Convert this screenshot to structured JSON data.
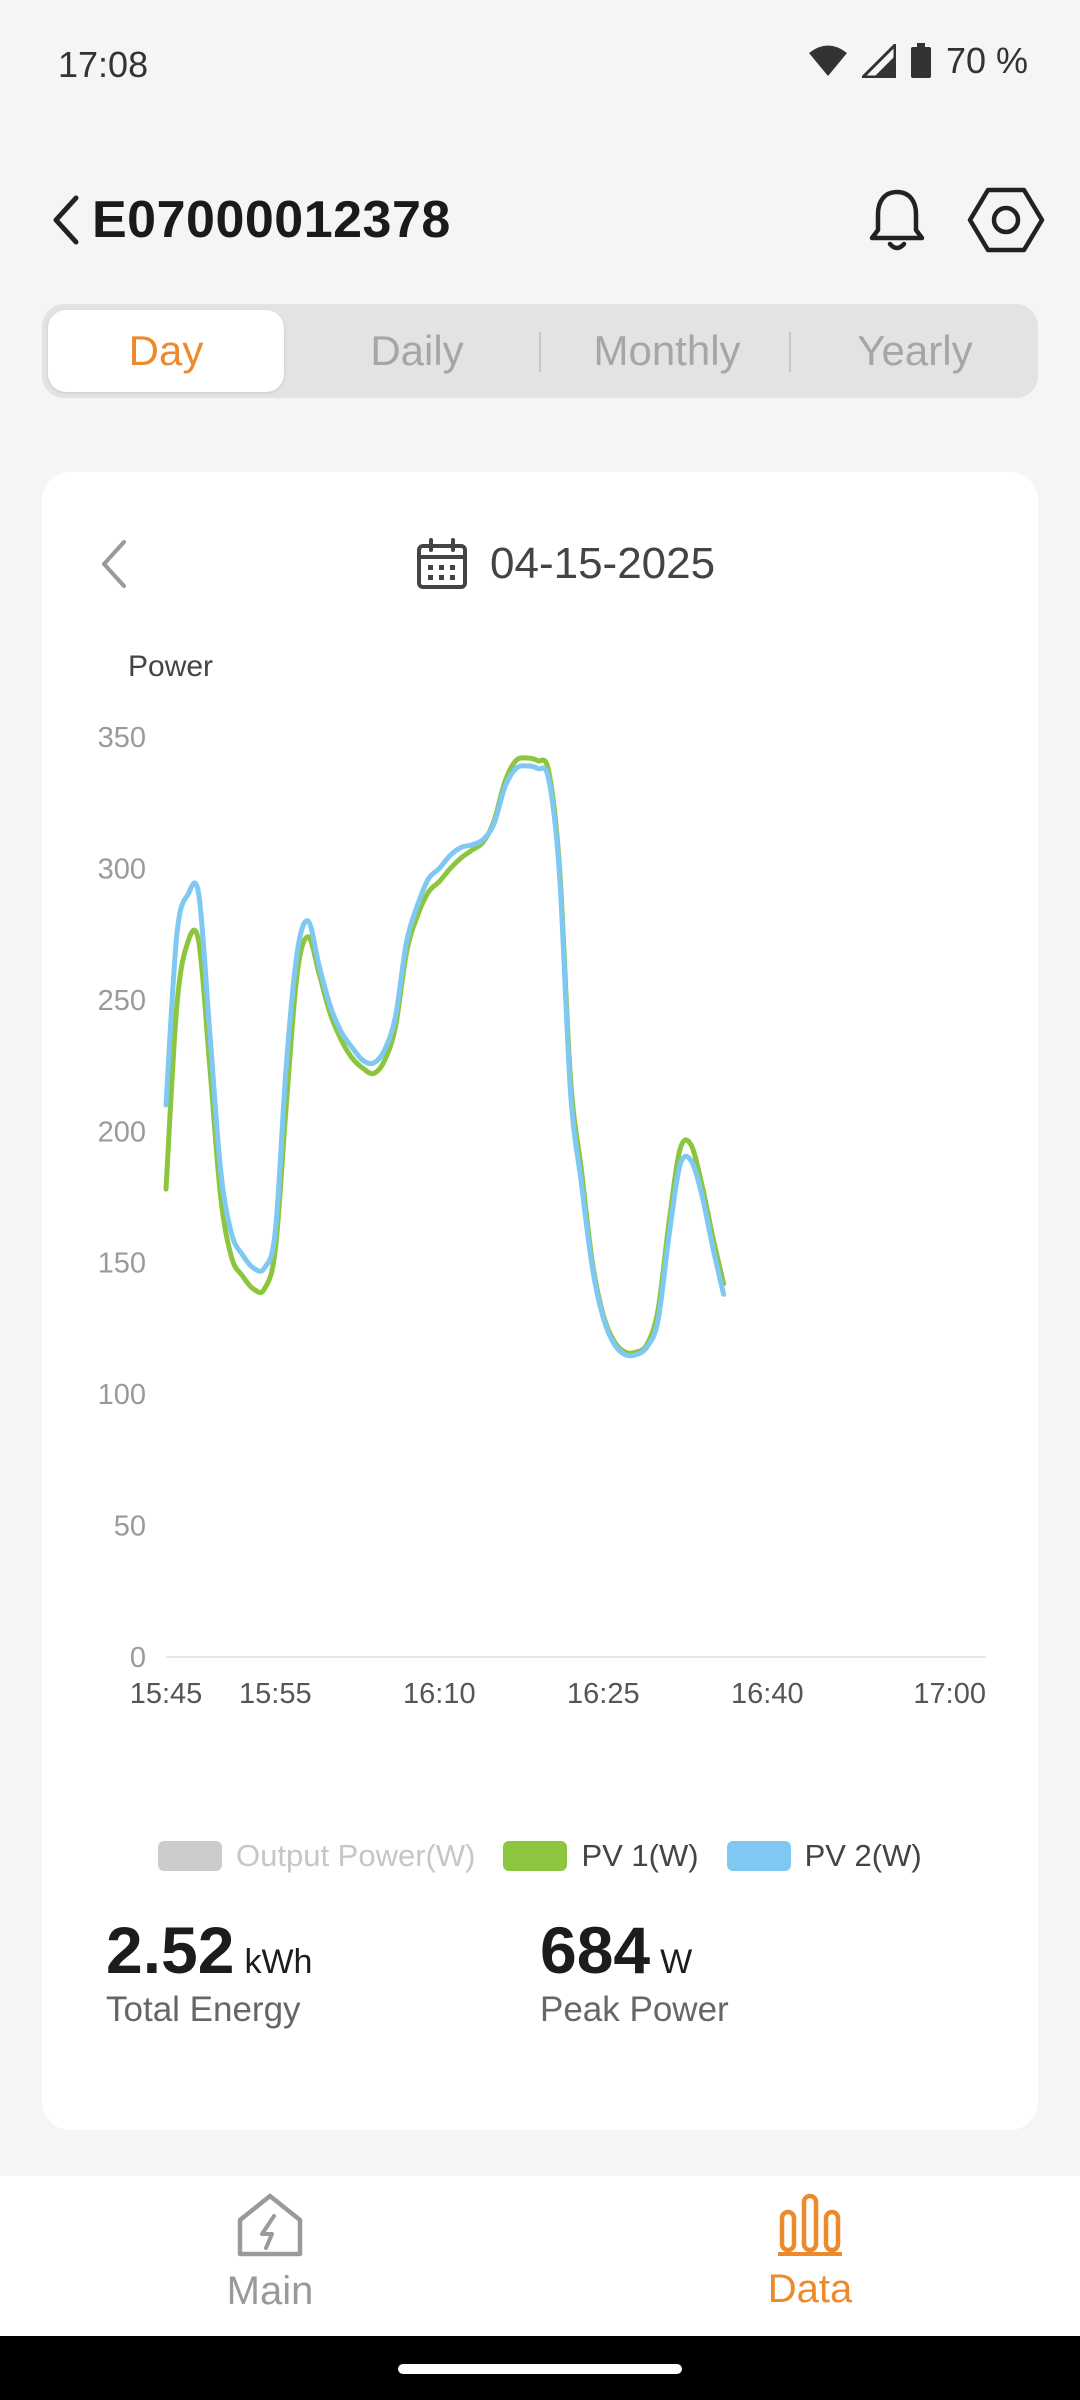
{
  "status_bar": {
    "time": "17:08",
    "battery": "70 %"
  },
  "header": {
    "title": "E07000012378"
  },
  "tabs": [
    {
      "label": "Day",
      "active": true
    },
    {
      "label": "Daily",
      "active": false
    },
    {
      "label": "Monthly",
      "active": false
    },
    {
      "label": "Yearly",
      "active": false
    }
  ],
  "date": {
    "value": "04-15-2025"
  },
  "chart_data": {
    "type": "line",
    "ylabel": "Power",
    "ylim": [
      0,
      350
    ],
    "yticks": [
      "0",
      "50",
      "100",
      "150",
      "200",
      "250",
      "300",
      "350"
    ],
    "xlim": [
      "15:45",
      "17:00"
    ],
    "xticks": [
      "15:45",
      "15:55",
      "16:10",
      "16:25",
      "16:40",
      "17:00"
    ],
    "grid": false,
    "legend_position": "bottom",
    "series": [
      {
        "name": "Output Power(W)",
        "color": "#cccccc",
        "disabled": true,
        "points": []
      },
      {
        "name": "PV 1(W)",
        "color": "#8cc63f",
        "points": [
          [
            "15:45",
            178
          ],
          [
            "15:46",
            248
          ],
          [
            "15:47",
            272
          ],
          [
            "15:48",
            272
          ],
          [
            "15:49",
            225
          ],
          [
            "15:50",
            175
          ],
          [
            "15:51",
            152
          ],
          [
            "15:52",
            145
          ],
          [
            "15:53",
            140
          ],
          [
            "15:54",
            140
          ],
          [
            "15:55",
            155
          ],
          [
            "15:56",
            210
          ],
          [
            "15:57",
            260
          ],
          [
            "15:58",
            274
          ],
          [
            "15:59",
            260
          ],
          [
            "16:00",
            245
          ],
          [
            "16:01",
            235
          ],
          [
            "16:02",
            228
          ],
          [
            "16:03",
            224
          ],
          [
            "16:04",
            222
          ],
          [
            "16:05",
            227
          ],
          [
            "16:06",
            240
          ],
          [
            "16:07",
            268
          ],
          [
            "16:08",
            282
          ],
          [
            "16:09",
            291
          ],
          [
            "16:10",
            295
          ],
          [
            "16:11",
            300
          ],
          [
            "16:12",
            304
          ],
          [
            "16:13",
            307
          ],
          [
            "16:14",
            310
          ],
          [
            "16:15",
            318
          ],
          [
            "16:16",
            333
          ],
          [
            "16:17",
            341
          ],
          [
            "16:18",
            342
          ],
          [
            "16:19",
            341
          ],
          [
            "16:20",
            337
          ],
          [
            "16:21",
            300
          ],
          [
            "16:22",
            220
          ],
          [
            "16:23",
            185
          ],
          [
            "16:24",
            150
          ],
          [
            "16:25",
            130
          ],
          [
            "16:26",
            120
          ],
          [
            "16:27",
            116
          ],
          [
            "16:28",
            116
          ],
          [
            "16:29",
            119
          ],
          [
            "16:30",
            132
          ],
          [
            "16:31",
            165
          ],
          [
            "16:32",
            193
          ],
          [
            "16:33",
            195
          ],
          [
            "16:34",
            180
          ],
          [
            "16:35",
            160
          ],
          [
            "16:36",
            142
          ]
        ]
      },
      {
        "name": "PV 2(W)",
        "color": "#7ec8f2",
        "points": [
          [
            "15:45",
            210
          ],
          [
            "15:46",
            275
          ],
          [
            "15:47",
            290
          ],
          [
            "15:48",
            290
          ],
          [
            "15:49",
            238
          ],
          [
            "15:50",
            185
          ],
          [
            "15:51",
            161
          ],
          [
            "15:52",
            153
          ],
          [
            "15:53",
            148
          ],
          [
            "15:54",
            148
          ],
          [
            "15:55",
            162
          ],
          [
            "15:56",
            225
          ],
          [
            "15:57",
            268
          ],
          [
            "15:58",
            280
          ],
          [
            "15:59",
            263
          ],
          [
            "16:00",
            248
          ],
          [
            "16:01",
            238
          ],
          [
            "16:02",
            232
          ],
          [
            "16:03",
            227
          ],
          [
            "16:04",
            226
          ],
          [
            "16:05",
            231
          ],
          [
            "16:06",
            244
          ],
          [
            "16:07",
            272
          ],
          [
            "16:08",
            286
          ],
          [
            "16:09",
            296
          ],
          [
            "16:10",
            300
          ],
          [
            "16:11",
            305
          ],
          [
            "16:12",
            308
          ],
          [
            "16:13",
            309
          ],
          [
            "16:14",
            311
          ],
          [
            "16:15",
            317
          ],
          [
            "16:16",
            331
          ],
          [
            "16:17",
            338
          ],
          [
            "16:18",
            339
          ],
          [
            "16:19",
            338
          ],
          [
            "16:20",
            334
          ],
          [
            "16:21",
            297
          ],
          [
            "16:22",
            215
          ],
          [
            "16:23",
            180
          ],
          [
            "16:24",
            148
          ],
          [
            "16:25",
            129
          ],
          [
            "16:26",
            119
          ],
          [
            "16:27",
            115
          ],
          [
            "16:28",
            115
          ],
          [
            "16:29",
            118
          ],
          [
            "16:30",
            128
          ],
          [
            "16:31",
            160
          ],
          [
            "16:32",
            187
          ],
          [
            "16:33",
            189
          ],
          [
            "16:34",
            176
          ],
          [
            "16:35",
            156
          ],
          [
            "16:36",
            138
          ]
        ]
      }
    ]
  },
  "stats": {
    "total_energy": {
      "value": "2.52",
      "unit": "kWh",
      "label": "Total Energy"
    },
    "peak_power": {
      "value": "684",
      "unit": "W",
      "label": "Peak Power"
    }
  },
  "bottom_nav": [
    {
      "label": "Main",
      "icon": "home-icon",
      "active": false
    },
    {
      "label": "Data",
      "icon": "bar-chart-icon",
      "active": true
    }
  ]
}
